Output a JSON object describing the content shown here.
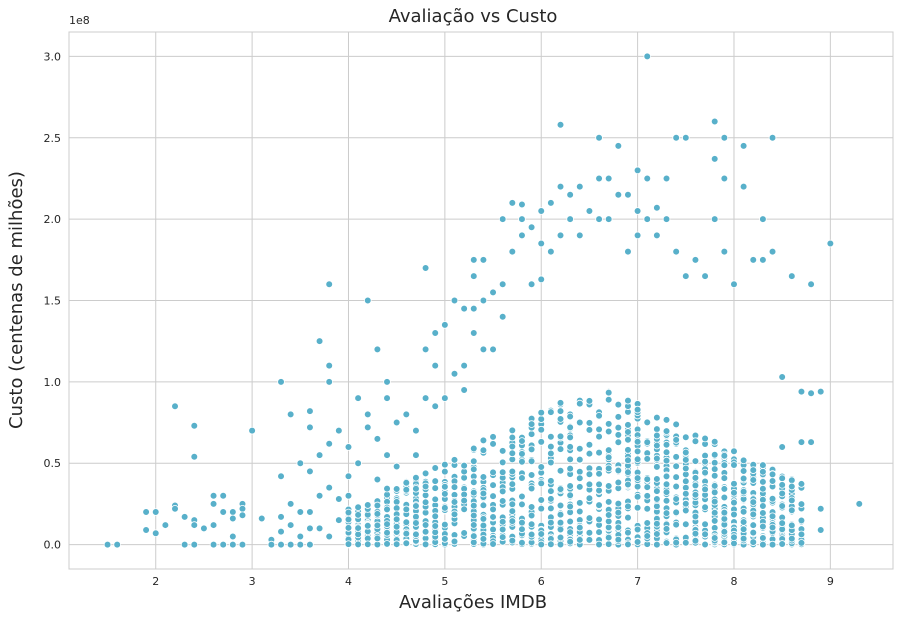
{
  "chart_data": {
    "type": "scatter",
    "title": "Avaliação vs Custo",
    "xlabel": "Avaliações IMDB",
    "ylabel": "Custo (centenas de milhões)",
    "y_offset_label": "1e8",
    "xlim": [
      1.1,
      9.65
    ],
    "ylim": [
      -0.15,
      3.15
    ],
    "x_ticks": [
      "2",
      "3",
      "4",
      "5",
      "6",
      "7",
      "8",
      "9"
    ],
    "y_ticks": [
      "0.0",
      "0.5",
      "1.0",
      "1.5",
      "2.0",
      "2.5",
      "3.0"
    ],
    "grid": true,
    "color": "#58b0ca",
    "points": [
      [
        1.5,
        0.0
      ],
      [
        1.6,
        0.0
      ],
      [
        1.9,
        0.2
      ],
      [
        1.9,
        0.09
      ],
      [
        2.0,
        0.2
      ],
      [
        2.0,
        0.07
      ],
      [
        2.1,
        0.12
      ],
      [
        2.2,
        0.85
      ],
      [
        2.2,
        0.24
      ],
      [
        2.2,
        0.22
      ],
      [
        2.3,
        0.17
      ],
      [
        2.3,
        0.0
      ],
      [
        2.4,
        0.73
      ],
      [
        2.4,
        0.54
      ],
      [
        2.4,
        0.15
      ],
      [
        2.4,
        0.12
      ],
      [
        2.4,
        0.0
      ],
      [
        2.5,
        0.1
      ],
      [
        2.6,
        0.3
      ],
      [
        2.6,
        0.25
      ],
      [
        2.6,
        0.12
      ],
      [
        2.6,
        0.0
      ],
      [
        2.7,
        0.3
      ],
      [
        2.7,
        0.2
      ],
      [
        2.7,
        0.0
      ],
      [
        2.8,
        0.2
      ],
      [
        2.8,
        0.16
      ],
      [
        2.8,
        0.05
      ],
      [
        2.8,
        0.0
      ],
      [
        2.9,
        0.25
      ],
      [
        2.9,
        0.22
      ],
      [
        2.9,
        0.18
      ],
      [
        2.9,
        0.0
      ],
      [
        3.0,
        0.7
      ],
      [
        3.1,
        0.16
      ],
      [
        3.2,
        0.03
      ],
      [
        3.2,
        0.0
      ],
      [
        3.3,
        1.0
      ],
      [
        3.3,
        0.42
      ],
      [
        3.3,
        0.17
      ],
      [
        3.3,
        0.08
      ],
      [
        3.3,
        0.0
      ],
      [
        3.4,
        0.8
      ],
      [
        3.4,
        0.25
      ],
      [
        3.4,
        0.12
      ],
      [
        3.4,
        0.0
      ],
      [
        3.5,
        0.5
      ],
      [
        3.5,
        0.2
      ],
      [
        3.5,
        0.05
      ],
      [
        3.5,
        0.0
      ],
      [
        3.6,
        0.82
      ],
      [
        3.6,
        0.72
      ],
      [
        3.6,
        0.45
      ],
      [
        3.6,
        0.2
      ],
      [
        3.6,
        0.1
      ],
      [
        3.6,
        0.0
      ],
      [
        3.7,
        1.25
      ],
      [
        3.7,
        0.55
      ],
      [
        3.7,
        0.3
      ],
      [
        3.7,
        0.1
      ],
      [
        3.8,
        1.6
      ],
      [
        3.8,
        1.1
      ],
      [
        3.8,
        1.0
      ],
      [
        3.8,
        0.62
      ],
      [
        3.8,
        0.35
      ],
      [
        3.8,
        0.05
      ],
      [
        3.9,
        0.7
      ],
      [
        3.9,
        0.28
      ],
      [
        3.9,
        0.15
      ],
      [
        4.0,
        0.6
      ],
      [
        4.0,
        0.42
      ],
      [
        4.0,
        0.3
      ],
      [
        4.1,
        0.9
      ],
      [
        4.1,
        0.5
      ],
      [
        4.2,
        1.5
      ],
      [
        4.2,
        0.8
      ],
      [
        4.2,
        0.72
      ],
      [
        4.3,
        1.2
      ],
      [
        4.3,
        0.65
      ],
      [
        4.3,
        0.4
      ],
      [
        4.4,
        1.0
      ],
      [
        4.4,
        0.9
      ],
      [
        4.4,
        0.55
      ],
      [
        4.5,
        0.75
      ],
      [
        4.5,
        0.48
      ],
      [
        4.6,
        0.8
      ],
      [
        4.6,
        0.38
      ],
      [
        4.7,
        0.7
      ],
      [
        4.7,
        0.55
      ],
      [
        4.8,
        1.7
      ],
      [
        4.8,
        1.2
      ],
      [
        4.8,
        0.9
      ],
      [
        4.9,
        1.3
      ],
      [
        4.9,
        1.1
      ],
      [
        4.9,
        0.85
      ],
      [
        5.0,
        1.35
      ],
      [
        5.0,
        0.9
      ],
      [
        5.1,
        1.5
      ],
      [
        5.1,
        1.05
      ],
      [
        5.2,
        1.45
      ],
      [
        5.2,
        1.1
      ],
      [
        5.2,
        0.95
      ],
      [
        5.3,
        1.75
      ],
      [
        5.3,
        1.65
      ],
      [
        5.3,
        1.45
      ],
      [
        5.3,
        1.3
      ],
      [
        5.4,
        1.75
      ],
      [
        5.4,
        1.5
      ],
      [
        5.4,
        1.2
      ],
      [
        5.5,
        1.55
      ],
      [
        5.5,
        1.2
      ],
      [
        5.6,
        2.0
      ],
      [
        5.6,
        1.6
      ],
      [
        5.6,
        1.4
      ],
      [
        5.7,
        2.1
      ],
      [
        5.7,
        1.8
      ],
      [
        5.8,
        2.09
      ],
      [
        5.8,
        2.0
      ],
      [
        5.8,
        1.9
      ],
      [
        5.9,
        1.95
      ],
      [
        5.9,
        1.6
      ],
      [
        6.0,
        2.05
      ],
      [
        6.0,
        1.85
      ],
      [
        6.0,
        1.63
      ],
      [
        6.1,
        2.1
      ],
      [
        6.1,
        1.8
      ],
      [
        6.2,
        2.58
      ],
      [
        6.2,
        2.2
      ],
      [
        6.2,
        1.9
      ],
      [
        6.3,
        2.15
      ],
      [
        6.3,
        2.0
      ],
      [
        6.4,
        2.2
      ],
      [
        6.4,
        1.9
      ],
      [
        6.5,
        2.05
      ],
      [
        6.6,
        2.5
      ],
      [
        6.6,
        2.25
      ],
      [
        6.6,
        2.0
      ],
      [
        6.7,
        2.25
      ],
      [
        6.7,
        2.0
      ],
      [
        6.8,
        2.45
      ],
      [
        6.8,
        2.15
      ],
      [
        6.9,
        2.15
      ],
      [
        6.9,
        1.8
      ],
      [
        7.0,
        2.3
      ],
      [
        7.0,
        2.05
      ],
      [
        7.0,
        1.9
      ],
      [
        7.1,
        3.0
      ],
      [
        7.1,
        2.25
      ],
      [
        7.1,
        2.0
      ],
      [
        7.2,
        2.07
      ],
      [
        7.2,
        1.9
      ],
      [
        7.3,
        2.25
      ],
      [
        7.3,
        2.0
      ],
      [
        7.4,
        2.5
      ],
      [
        7.4,
        1.8
      ],
      [
        7.5,
        2.5
      ],
      [
        7.5,
        1.65
      ],
      [
        7.6,
        1.75
      ],
      [
        7.7,
        1.65
      ],
      [
        7.8,
        2.6
      ],
      [
        7.8,
        2.37
      ],
      [
        7.8,
        2.0
      ],
      [
        7.9,
        2.5
      ],
      [
        7.9,
        2.25
      ],
      [
        7.9,
        1.8
      ],
      [
        8.0,
        1.6
      ],
      [
        8.1,
        2.45
      ],
      [
        8.1,
        2.2
      ],
      [
        8.2,
        1.75
      ],
      [
        8.3,
        2.0
      ],
      [
        8.3,
        1.75
      ],
      [
        8.4,
        2.5
      ],
      [
        8.4,
        1.8
      ],
      [
        8.5,
        1.03
      ],
      [
        8.5,
        0.6
      ],
      [
        8.6,
        1.65
      ],
      [
        8.7,
        0.94
      ],
      [
        8.7,
        0.63
      ],
      [
        8.8,
        1.6
      ],
      [
        8.8,
        0.93
      ],
      [
        8.8,
        0.63
      ],
      [
        8.9,
        0.94
      ],
      [
        8.9,
        0.22
      ],
      [
        8.9,
        0.09
      ],
      [
        9.0,
        1.85
      ],
      [
        9.3,
        0.25
      ]
    ]
  }
}
